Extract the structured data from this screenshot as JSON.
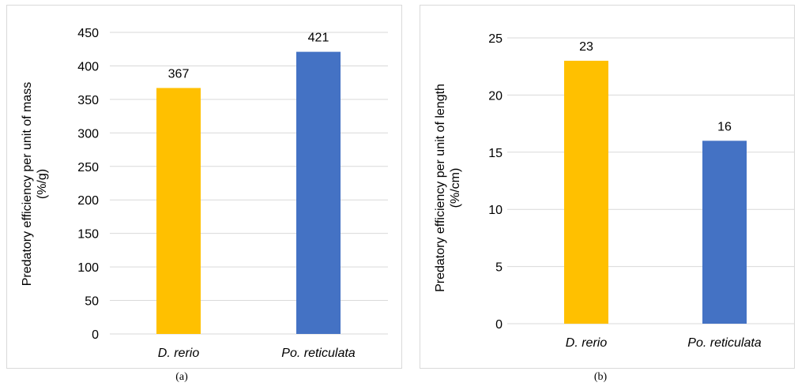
{
  "chart_data": [
    {
      "type": "bar",
      "categories": [
        "D. rerio",
        "Po. reticulata"
      ],
      "values": [
        367,
        421
      ],
      "data_labels": [
        "367",
        "421"
      ],
      "colors": [
        "#FFC000",
        "#4472C4"
      ],
      "ylabel_lines": [
        "Predatory efficiency per unit of mass",
        "(%/g)"
      ],
      "ylim": [
        0,
        450
      ],
      "yticks": [
        0,
        50,
        100,
        150,
        200,
        250,
        300,
        350,
        400,
        450
      ],
      "grid": true,
      "caption": "(a)"
    },
    {
      "type": "bar",
      "categories": [
        "D. rerio",
        "Po. reticulata"
      ],
      "values": [
        23,
        16
      ],
      "data_labels": [
        "23",
        "16"
      ],
      "colors": [
        "#FFC000",
        "#4472C4"
      ],
      "ylabel_lines": [
        "Predatory efficiency per unit of length",
        "(%/cm)"
      ],
      "ylim": [
        0,
        25
      ],
      "yticks": [
        0,
        5,
        10,
        15,
        20,
        25
      ],
      "grid": true,
      "caption": "(b)"
    }
  ]
}
